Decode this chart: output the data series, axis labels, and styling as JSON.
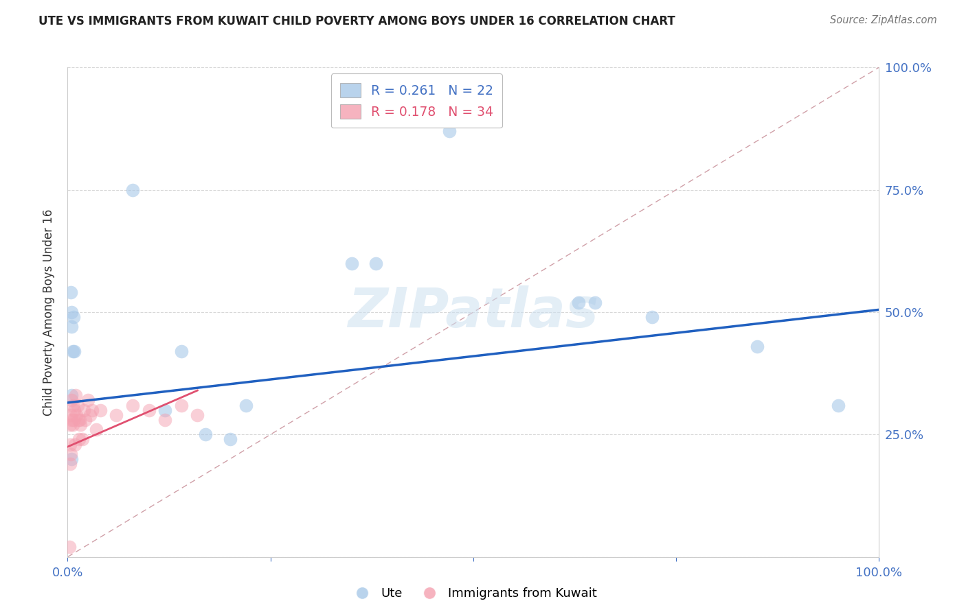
{
  "title": "UTE VS IMMIGRANTS FROM KUWAIT CHILD POVERTY AMONG BOYS UNDER 16 CORRELATION CHART",
  "source": "Source: ZipAtlas.com",
  "ylabel": "Child Poverty Among Boys Under 16",
  "legend_label1": "Ute",
  "legend_label2": "Immigrants from Kuwait",
  "R1": 0.261,
  "N1": 22,
  "R2": 0.178,
  "N2": 34,
  "xlim": [
    0,
    1
  ],
  "ylim": [
    0,
    1
  ],
  "xtick_positions": [
    0.0,
    0.25,
    0.5,
    0.75,
    1.0
  ],
  "xtick_labels": [
    "0.0%",
    "",
    "",
    "",
    "100.0%"
  ],
  "ytick_positions": [
    0.0,
    0.25,
    0.5,
    0.75,
    1.0
  ],
  "ytick_labels_right": [
    "",
    "25.0%",
    "50.0%",
    "75.0%",
    "100.0%"
  ],
  "color_blue": "#a8c8e8",
  "color_pink": "#f4a0b0",
  "color_blue_line": "#2060c0",
  "color_pink_line": "#e05070",
  "color_diag": "#d0a0a8",
  "watermark": "ZIPatlas",
  "blue_points_x": [
    0.004,
    0.005,
    0.007,
    0.005,
    0.006,
    0.008,
    0.005,
    0.005,
    0.38,
    0.47,
    0.63,
    0.72,
    0.85,
    0.95,
    0.14,
    0.12,
    0.17,
    0.2,
    0.22,
    0.65,
    0.35,
    0.08
  ],
  "blue_points_y": [
    0.54,
    0.5,
    0.49,
    0.47,
    0.42,
    0.42,
    0.33,
    0.2,
    0.6,
    0.87,
    0.52,
    0.49,
    0.43,
    0.31,
    0.42,
    0.3,
    0.25,
    0.24,
    0.31,
    0.52,
    0.6,
    0.75
  ],
  "pink_points_x": [
    0.002,
    0.003,
    0.003,
    0.003,
    0.004,
    0.004,
    0.005,
    0.005,
    0.006,
    0.006,
    0.007,
    0.008,
    0.009,
    0.01,
    0.011,
    0.012,
    0.013,
    0.014,
    0.015,
    0.016,
    0.018,
    0.02,
    0.022,
    0.025,
    0.028,
    0.03,
    0.035,
    0.04,
    0.06,
    0.08,
    0.1,
    0.12,
    0.14,
    0.16
  ],
  "pink_points_y": [
    0.02,
    0.19,
    0.23,
    0.27,
    0.21,
    0.29,
    0.28,
    0.32,
    0.31,
    0.27,
    0.28,
    0.3,
    0.23,
    0.33,
    0.29,
    0.31,
    0.28,
    0.24,
    0.28,
    0.27,
    0.24,
    0.3,
    0.28,
    0.32,
    0.29,
    0.3,
    0.26,
    0.3,
    0.29,
    0.31,
    0.3,
    0.28,
    0.31,
    0.29
  ],
  "blue_line_x": [
    0.0,
    1.0
  ],
  "blue_line_y": [
    0.315,
    0.505
  ],
  "pink_line_x": [
    0.0,
    0.16
  ],
  "pink_line_y": [
    0.225,
    0.34
  ],
  "grid_color": "#d8d8d8",
  "spine_color": "#cccccc",
  "tick_label_color": "#4472c4"
}
